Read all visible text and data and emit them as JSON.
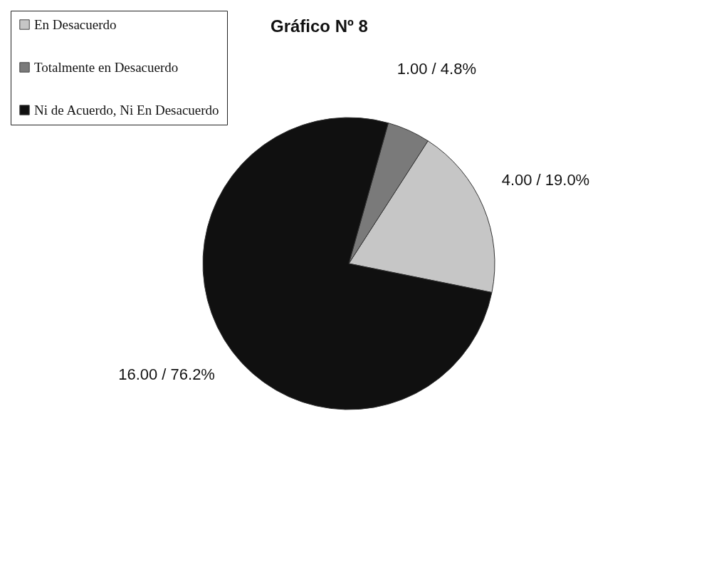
{
  "chart_data": {
    "type": "pie",
    "title": "Gráfico Nº 8",
    "categories": [
      "En Desacuerdo",
      "Totalmente en Desacuerdo",
      "Ni de Acuerdo, Ni En Desacuerdo"
    ],
    "values": [
      4,
      1,
      16
    ],
    "colors": [
      "#c6c6c6",
      "#7a7a7a",
      "#101010"
    ],
    "value_labels": [
      "4.00 / 19.0%",
      "1.00 / 4.8%",
      "16.00 / 76.2%"
    ],
    "legend": "top left"
  }
}
